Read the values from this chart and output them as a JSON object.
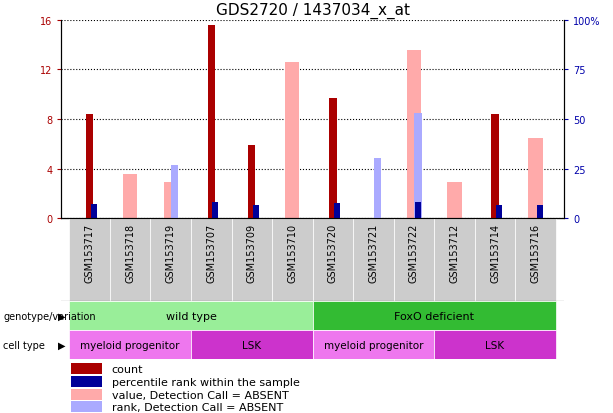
{
  "title": "GDS2720 / 1437034_x_at",
  "samples": [
    "GSM153717",
    "GSM153718",
    "GSM153719",
    "GSM153707",
    "GSM153709",
    "GSM153710",
    "GSM153720",
    "GSM153721",
    "GSM153722",
    "GSM153712",
    "GSM153714",
    "GSM153716"
  ],
  "count_values": [
    8.4,
    null,
    null,
    15.6,
    5.9,
    null,
    9.7,
    null,
    null,
    null,
    8.4,
    null
  ],
  "percentile_values": [
    7.3,
    null,
    null,
    8.5,
    6.7,
    null,
    7.6,
    null,
    8.5,
    null,
    7.0,
    6.6
  ],
  "absent_value_values": [
    null,
    3.6,
    2.9,
    null,
    null,
    12.6,
    null,
    null,
    13.6,
    2.9,
    null,
    6.5
  ],
  "absent_rank_values": [
    null,
    null,
    4.3,
    null,
    null,
    null,
    null,
    4.9,
    8.5,
    null,
    null,
    null
  ],
  "ylim_left": [
    0,
    16
  ],
  "ylim_right": [
    0,
    100
  ],
  "yticks_left": [
    0,
    4,
    8,
    12,
    16
  ],
  "yticks_right": [
    0,
    25,
    50,
    75,
    100
  ],
  "yticklabels_right": [
    "0",
    "25",
    "50",
    "75",
    "100%"
  ],
  "count_color": "#aa0000",
  "percentile_color": "#000099",
  "absent_value_color": "#ffaaaa",
  "absent_rank_color": "#aaaaff",
  "tick_color_left": "#aa0000",
  "tick_color_right": "#0000aa",
  "genotype_groups": [
    {
      "label": "wild type",
      "start": 0,
      "end": 6,
      "color": "#99ee99"
    },
    {
      "label": "FoxO deficient",
      "start": 6,
      "end": 12,
      "color": "#33bb33"
    }
  ],
  "cell_type_groups": [
    {
      "label": "myeloid progenitor",
      "start": 0,
      "end": 3,
      "color": "#ee77ee"
    },
    {
      "label": "LSK",
      "start": 3,
      "end": 6,
      "color": "#cc33cc"
    },
    {
      "label": "myeloid progenitor",
      "start": 6,
      "end": 9,
      "color": "#ee77ee"
    },
    {
      "label": "LSK",
      "start": 9,
      "end": 12,
      "color": "#cc33cc"
    }
  ],
  "legend_items": [
    {
      "label": "count",
      "color": "#aa0000"
    },
    {
      "label": "percentile rank within the sample",
      "color": "#000099"
    },
    {
      "label": "value, Detection Call = ABSENT",
      "color": "#ffaaaa"
    },
    {
      "label": "rank, Detection Call = ABSENT",
      "color": "#aaaaff"
    }
  ],
  "title_fontsize": 11,
  "tick_fontsize": 7,
  "legend_fontsize": 8,
  "bar_width": 0.5,
  "small_bar_width": 0.18
}
